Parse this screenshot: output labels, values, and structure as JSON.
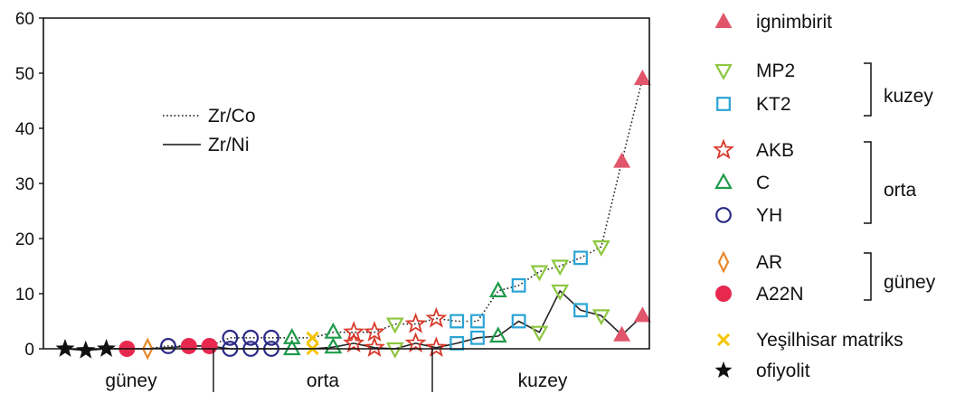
{
  "chart_data": {
    "type": "scatter",
    "title": "",
    "ylim": [
      0,
      60
    ],
    "y_ticks": [
      "0",
      "10",
      "20",
      "30",
      "40",
      "50",
      "60"
    ],
    "regions": [
      "güney",
      "orta",
      "kuzey"
    ],
    "line_legend": [
      {
        "label": "Zr/Co",
        "style": "dotted"
      },
      {
        "label": "Zr/Ni",
        "style": "solid"
      }
    ],
    "legend": [
      {
        "label": "ignimbirit",
        "marker": "triangle-up-filled",
        "color": "#e0556a"
      },
      {
        "label": "MP2",
        "marker": "triangle-down-open",
        "color": "#8cc63f"
      },
      {
        "label": "KT2",
        "marker": "square-open",
        "color": "#29a3d6"
      },
      {
        "label": "AKB",
        "marker": "star-open",
        "color": "#d9382a"
      },
      {
        "label": "C",
        "marker": "triangle-up-open",
        "color": "#1e9a4a"
      },
      {
        "label": "YH",
        "marker": "circle-open",
        "color": "#2b2a86"
      },
      {
        "label": "AR",
        "marker": "diamond-open",
        "color": "#e8882a"
      },
      {
        "label": "A22N",
        "marker": "circle-filled",
        "color": "#e8294f"
      },
      {
        "label": "Yeşilhisar matriks",
        "marker": "cross",
        "color": "#f5c400"
      },
      {
        "label": "ofiyolit",
        "marker": "star-filled",
        "color": "#111111"
      }
    ],
    "groups": [
      {
        "label": "kuzey",
        "members": [
          "MP2",
          "KT2"
        ]
      },
      {
        "label": "orta",
        "members": [
          "AKB",
          "C",
          "YH"
        ]
      },
      {
        "label": "güney",
        "members": [
          "AR",
          "A22N"
        ]
      }
    ],
    "samples": [
      {
        "type": "ofiyolit",
        "zr_co": 0,
        "zr_ni": 0
      },
      {
        "type": "ofiyolit",
        "zr_co": -0.3,
        "zr_ni": -0.3
      },
      {
        "type": "ofiyolit",
        "zr_co": 0,
        "zr_ni": 0
      },
      {
        "type": "A22N",
        "zr_co": 0,
        "zr_ni": 0
      },
      {
        "type": "AR",
        "zr_co": 0,
        "zr_ni": 0
      },
      {
        "type": "YH",
        "zr_co": 0.5,
        "zr_ni": 0.2
      },
      {
        "type": "A22N",
        "zr_co": 0.5,
        "zr_ni": 0.5
      },
      {
        "type": "A22N",
        "zr_co": 0.5,
        "zr_ni": 0.5
      },
      {
        "type": "YH",
        "zr_co": 2,
        "zr_ni": 0
      },
      {
        "type": "YH",
        "zr_co": 2,
        "zr_ni": 0
      },
      {
        "type": "YH",
        "zr_co": 2,
        "zr_ni": 0
      },
      {
        "type": "C",
        "zr_co": 2,
        "zr_ni": 0
      },
      {
        "type": "Yeşilhisar matriks",
        "zr_co": 2,
        "zr_ni": 0
      },
      {
        "type": "C",
        "zr_co": 3,
        "zr_ni": 0.3
      },
      {
        "type": "AKB",
        "zr_co": 3,
        "zr_ni": 1
      },
      {
        "type": "AKB",
        "zr_co": 3,
        "zr_ni": 0.2
      },
      {
        "type": "MP2",
        "zr_co": 4.5,
        "zr_ni": 0
      },
      {
        "type": "AKB",
        "zr_co": 4.5,
        "zr_ni": 1
      },
      {
        "type": "AKB",
        "zr_co": 5.5,
        "zr_ni": 0.2
      },
      {
        "type": "KT2",
        "zr_co": 5,
        "zr_ni": 1
      },
      {
        "type": "KT2",
        "zr_co": 5,
        "zr_ni": 2
      },
      {
        "type": "C",
        "zr_co": 10.5,
        "zr_ni": 2.3
      },
      {
        "type": "KT2",
        "zr_co": 11.5,
        "zr_ni": 5
      },
      {
        "type": "MP2",
        "zr_co": 14,
        "zr_ni": 3
      },
      {
        "type": "MP2",
        "zr_co": 15,
        "zr_ni": 10.5
      },
      {
        "type": "KT2",
        "zr_co": 16.5,
        "zr_ni": 7
      },
      {
        "type": "MP2",
        "zr_co": 18.5,
        "zr_ni": 6
      },
      {
        "type": "ignimbirit",
        "zr_co": 34,
        "zr_ni": 2.5
      },
      {
        "type": "ignimbirit",
        "zr_co": 49,
        "zr_ni": 6
      }
    ]
  }
}
